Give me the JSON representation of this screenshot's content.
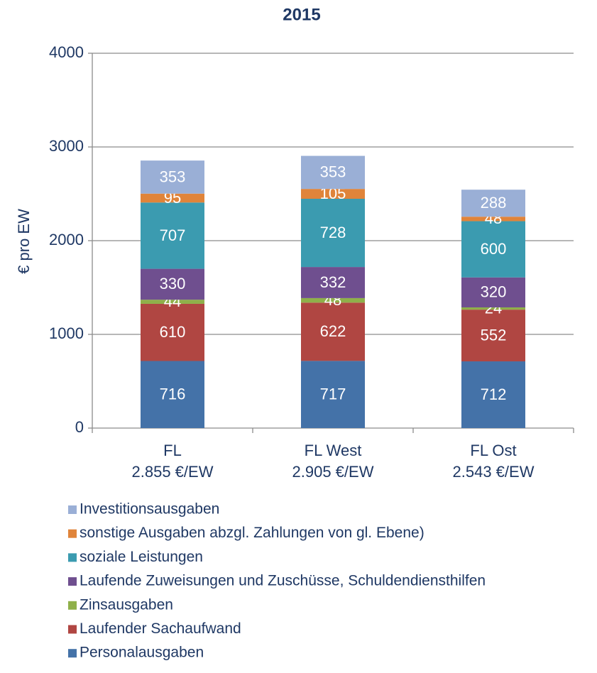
{
  "chart_data": {
    "type": "stacked_bar",
    "title": "2015",
    "y_label": "€ pro EW",
    "categories": [
      "FL",
      "FL West",
      "FL Ost"
    ],
    "category_sublabels": [
      "2.855 €/EW",
      "2.905 €/EW",
      "2.543 €/EW"
    ],
    "series": [
      {
        "name": "Personalausgaben",
        "color": "#4472a8",
        "values": [
          716,
          717,
          712
        ]
      },
      {
        "name": "Laufender Sachaufwand",
        "color": "#b04642",
        "values": [
          610,
          622,
          552
        ]
      },
      {
        "name": "Zinsausgaben",
        "color": "#8fb04a",
        "values": [
          44,
          48,
          24
        ]
      },
      {
        "name": "Laufende Zuweisungen und Zuschüsse, Schuldendiensthilfen",
        "color": "#6f4f8f",
        "values": [
          330,
          332,
          320
        ]
      },
      {
        "name": "soziale Leistungen",
        "color": "#3b9bb0",
        "values": [
          707,
          728,
          600
        ]
      },
      {
        "name": "sonstige Ausgaben abzgl. Zahlungen von gl. Ebene)",
        "color": "#e0843a",
        "values": [
          95,
          105,
          48
        ]
      },
      {
        "name": "Investitionsausgaben",
        "color": "#9aafd6",
        "values": [
          353,
          353,
          288
        ]
      }
    ],
    "ylim": [
      0,
      4000
    ],
    "yticks": [
      0,
      1000,
      2000,
      3000,
      4000
    ],
    "grid": true
  }
}
